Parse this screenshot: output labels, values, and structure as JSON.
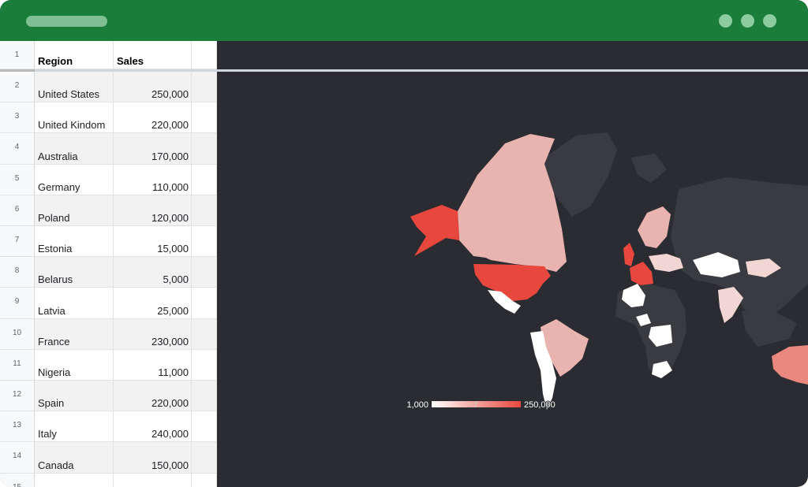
{
  "window": {
    "controls": [
      "dot",
      "dot",
      "dot"
    ]
  },
  "sheet": {
    "header_row_num": "1",
    "headers": {
      "region": "Region",
      "sales": "Sales"
    },
    "rows": [
      {
        "num": "2",
        "region": "United States",
        "sales": "250,000"
      },
      {
        "num": "3",
        "region": "United Kindom",
        "sales": "220,000"
      },
      {
        "num": "4",
        "region": "Australia",
        "sales": "170,000"
      },
      {
        "num": "5",
        "region": "Germany",
        "sales": "110,000"
      },
      {
        "num": "6",
        "region": "Poland",
        "sales": "120,000"
      },
      {
        "num": "7",
        "region": "Estonia",
        "sales": "15,000"
      },
      {
        "num": "8",
        "region": "Belarus",
        "sales": "5,000"
      },
      {
        "num": "9",
        "region": "Latvia",
        "sales": "25,000"
      },
      {
        "num": "10",
        "region": "France",
        "sales": "230,000"
      },
      {
        "num": "11",
        "region": "Nigeria",
        "sales": "11,000"
      },
      {
        "num": "12",
        "region": "Spain",
        "sales": "220,000"
      },
      {
        "num": "13",
        "region": "Italy",
        "sales": "240,000"
      },
      {
        "num": "14",
        "region": "Canada",
        "sales": "150,000"
      }
    ],
    "partial_row_num": "15"
  },
  "map": {
    "legend": {
      "min_label": "1,000",
      "max_label": "250,000"
    },
    "colors": {
      "background": "#2b2c31",
      "no_data": "#3a3b40",
      "scale_low": "#ffffff",
      "scale_high": "#e8473d"
    }
  },
  "colors": {
    "titlebar": "#1a7d3a"
  }
}
